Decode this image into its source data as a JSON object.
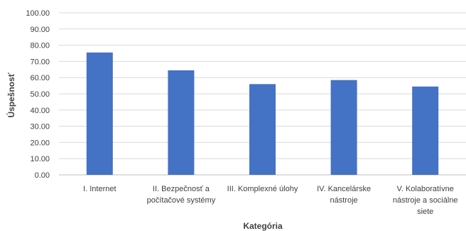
{
  "chart_data": {
    "type": "bar",
    "title": "",
    "xlabel": "Kategória",
    "ylabel": "Úspešnosť",
    "ylim": [
      0,
      100
    ],
    "ytick_step": 10,
    "ytick_decimals": 2,
    "grid": true,
    "legend": "none",
    "bar_color": "#4472c4",
    "categories": [
      [
        "I. Internet"
      ],
      [
        "II. Bezpečnosť a",
        "počítačové systémy"
      ],
      [
        "III. Komplexné úlohy"
      ],
      [
        "IV. Kancelárske",
        "nástroje"
      ],
      [
        "V. Kolaboratívne",
        "nástroje a sociálne",
        "siete"
      ]
    ],
    "values": [
      75.5,
      64.5,
      56.0,
      58.5,
      54.5
    ]
  }
}
